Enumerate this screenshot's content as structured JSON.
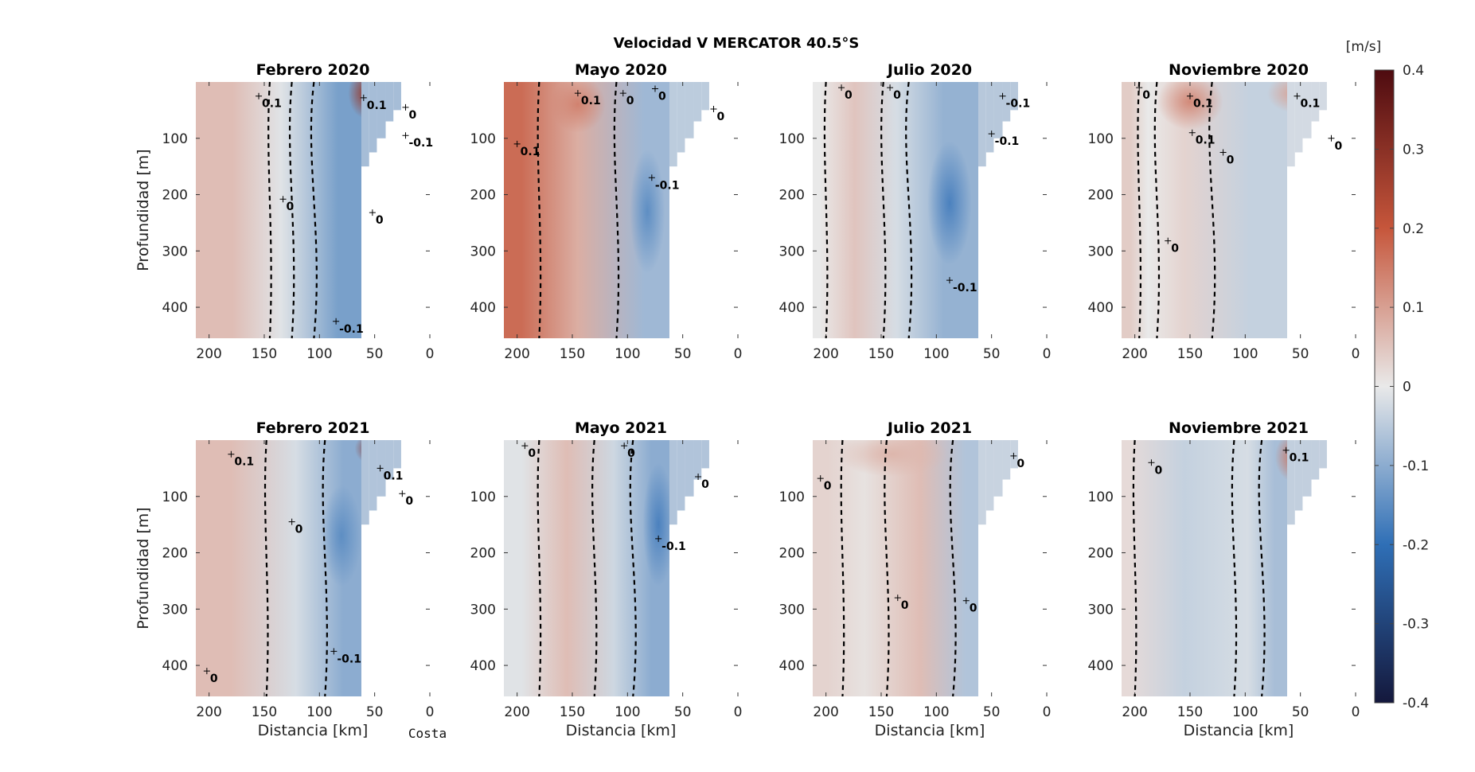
{
  "figure": {
    "suptitle": "Velocidad V MERCATOR 40.5°S",
    "colorbar": {
      "unit_label": "[m/s]",
      "range": [
        -0.4,
        0.4
      ],
      "ticks": [
        "0.4",
        "0.3",
        "0.2",
        "0.1",
        "0",
        "-0.1",
        "-0.2",
        "-0.3",
        "-0.4"
      ],
      "colormap": "blue-white-red diverging",
      "colors": {
        "neg_max": "#14183c",
        "neg_mid": "#2f6fb6",
        "zero": "#e9e9e9",
        "pos_mid": "#c6563b",
        "pos_max": "#4e0b10"
      }
    },
    "coast_label": "Costa"
  },
  "chart_data": [
    {
      "type": "heatmap",
      "title": "Febrero 2020",
      "xlabel": "",
      "ylabel": "Profundidad [m]",
      "xlim": [
        212,
        0
      ],
      "ylim": [
        455,
        0
      ],
      "xticks": [
        "200",
        "150",
        "100",
        "50",
        "0"
      ],
      "yticks": [
        "100",
        "200",
        "300",
        "400"
      ],
      "bands": [
        {
          "x": [
            212,
            145
          ],
          "v": 0.06
        },
        {
          "x": [
            145,
            125
          ],
          "v": -0.01
        },
        {
          "x": [
            125,
            105
          ],
          "v": -0.05
        },
        {
          "x": [
            105,
            62
          ],
          "v": -0.12
        }
      ],
      "blobs": [
        {
          "x": 58,
          "y": 20,
          "v": 0.28,
          "rx": 16,
          "ry": 45
        }
      ],
      "contour_labels": [
        {
          "text": "0.1",
          "x": 155,
          "y": 25
        },
        {
          "text": "0.1",
          "x": 60,
          "y": 28
        },
        {
          "text": "0",
          "x": 22,
          "y": 45
        },
        {
          "text": "-0.1",
          "x": 22,
          "y": 95
        },
        {
          "text": "0",
          "x": 133,
          "y": 208
        },
        {
          "text": "0",
          "x": 52,
          "y": 232
        },
        {
          "text": "-0.1",
          "x": 85,
          "y": 425
        }
      ]
    },
    {
      "type": "heatmap",
      "title": "Mayo 2020",
      "xlabel": "",
      "ylabel": "",
      "xlim": [
        212,
        0
      ],
      "ylim": [
        455,
        0
      ],
      "xticks": [
        "200",
        "150",
        "100",
        "50",
        "0"
      ],
      "yticks": [
        "100",
        "200",
        "300",
        "400"
      ],
      "bands": [
        {
          "x": [
            212,
            180
          ],
          "v": 0.17
        },
        {
          "x": [
            180,
            110
          ],
          "v": 0.08
        },
        {
          "x": [
            110,
            60
          ],
          "v": -0.08
        }
      ],
      "blobs": [
        {
          "x": 145,
          "y": 40,
          "v": 0.14,
          "rx": 25,
          "ry": 50
        },
        {
          "x": 82,
          "y": 230,
          "v": -0.15,
          "rx": 16,
          "ry": 110
        }
      ],
      "contour_labels": [
        {
          "text": "0.1",
          "x": 145,
          "y": 20
        },
        {
          "text": "0",
          "x": 104,
          "y": 20
        },
        {
          "text": "0",
          "x": 75,
          "y": 12
        },
        {
          "text": "0",
          "x": 22,
          "y": 48
        },
        {
          "text": "0.1",
          "x": 200,
          "y": 110
        },
        {
          "text": "-0.1",
          "x": 78,
          "y": 170
        }
      ]
    },
    {
      "type": "heatmap",
      "title": "Julio 2020",
      "xlabel": "",
      "ylabel": "",
      "xlim": [
        212,
        0
      ],
      "ylim": [
        455,
        0
      ],
      "xticks": [
        "200",
        "150",
        "100",
        "50",
        "0"
      ],
      "yticks": [
        "100",
        "200",
        "300",
        "400"
      ],
      "bands": [
        {
          "x": [
            212,
            200
          ],
          "v": 0.0
        },
        {
          "x": [
            200,
            148
          ],
          "v": 0.05
        },
        {
          "x": [
            148,
            125
          ],
          "v": -0.02
        },
        {
          "x": [
            125,
            62
          ],
          "v": -0.09
        }
      ],
      "blobs": [
        {
          "x": 88,
          "y": 215,
          "v": -0.17,
          "rx": 20,
          "ry": 110
        },
        {
          "x": 40,
          "y": 25,
          "v": -0.15,
          "rx": 15,
          "ry": 40
        }
      ],
      "contour_labels": [
        {
          "text": "0",
          "x": 186,
          "y": 10
        },
        {
          "text": "0",
          "x": 142,
          "y": 10
        },
        {
          "text": "-0.1",
          "x": 40,
          "y": 25
        },
        {
          "text": "-0.1",
          "x": 50,
          "y": 92
        },
        {
          "text": "-0.1",
          "x": 88,
          "y": 352
        }
      ]
    },
    {
      "type": "heatmap",
      "title": "Noviembre 2020",
      "xlabel": "",
      "ylabel": "",
      "xlim": [
        212,
        0
      ],
      "ylim": [
        455,
        0
      ],
      "xticks": [
        "200",
        "150",
        "100",
        "50",
        "0"
      ],
      "yticks": [
        "100",
        "200",
        "300",
        "400"
      ],
      "bands": [
        {
          "x": [
            212,
            196
          ],
          "v": 0.04
        },
        {
          "x": [
            196,
            180
          ],
          "v": 0.0
        },
        {
          "x": [
            180,
            130
          ],
          "v": 0.03
        },
        {
          "x": [
            130,
            62
          ],
          "v": -0.04
        }
      ],
      "blobs": [
        {
          "x": 150,
          "y": 35,
          "v": 0.13,
          "rx": 30,
          "ry": 50
        },
        {
          "x": 55,
          "y": 20,
          "v": 0.1,
          "rx": 25,
          "ry": 35
        }
      ],
      "contour_labels": [
        {
          "text": "0",
          "x": 196,
          "y": 10
        },
        {
          "text": "0.1",
          "x": 150,
          "y": 25
        },
        {
          "text": "0.1",
          "x": 53,
          "y": 25
        },
        {
          "text": "0.1",
          "x": 148,
          "y": 90
        },
        {
          "text": "0",
          "x": 120,
          "y": 125
        },
        {
          "text": "0",
          "x": 22,
          "y": 100
        },
        {
          "text": "0",
          "x": 170,
          "y": 282
        }
      ]
    },
    {
      "type": "heatmap",
      "title": "Febrero 2021",
      "xlabel": "Distancia [km]",
      "ylabel": "Profundidad [m]",
      "xlim": [
        212,
        0
      ],
      "ylim": [
        455,
        0
      ],
      "xticks": [
        "200",
        "150",
        "100",
        "50",
        "0"
      ],
      "yticks": [
        "100",
        "200",
        "300",
        "400"
      ],
      "bands": [
        {
          "x": [
            212,
            148
          ],
          "v": 0.06
        },
        {
          "x": [
            148,
            95
          ],
          "v": -0.02
        },
        {
          "x": [
            95,
            62
          ],
          "v": -0.1
        }
      ],
      "blobs": [
        {
          "x": 52,
          "y": 15,
          "v": 0.3,
          "rx": 16,
          "ry": 28
        },
        {
          "x": 80,
          "y": 170,
          "v": -0.15,
          "rx": 18,
          "ry": 90
        }
      ],
      "contour_labels": [
        {
          "text": "0.1",
          "x": 180,
          "y": 25
        },
        {
          "text": "0.1",
          "x": 45,
          "y": 50
        },
        {
          "text": "0",
          "x": 25,
          "y": 95
        },
        {
          "text": "0",
          "x": 125,
          "y": 145
        },
        {
          "text": "-0.1",
          "x": 87,
          "y": 375
        },
        {
          "text": "0",
          "x": 202,
          "y": 410
        }
      ]
    },
    {
      "type": "heatmap",
      "title": "Mayo 2021",
      "xlabel": "Distancia [km]",
      "ylabel": "",
      "xlim": [
        212,
        0
      ],
      "ylim": [
        455,
        0
      ],
      "xticks": [
        "200",
        "150",
        "100",
        "50",
        "0"
      ],
      "yticks": [
        "100",
        "200",
        "300",
        "400"
      ],
      "bands": [
        {
          "x": [
            212,
            180
          ],
          "v": -0.01
        },
        {
          "x": [
            180,
            130
          ],
          "v": 0.06
        },
        {
          "x": [
            130,
            95
          ],
          "v": -0.03
        },
        {
          "x": [
            95,
            62
          ],
          "v": -0.1
        }
      ],
      "blobs": [
        {
          "x": 72,
          "y": 150,
          "v": -0.17,
          "rx": 14,
          "ry": 110
        }
      ],
      "contour_labels": [
        {
          "text": "0",
          "x": 193,
          "y": 10
        },
        {
          "text": "0",
          "x": 103,
          "y": 10
        },
        {
          "text": "0",
          "x": 36,
          "y": 65
        },
        {
          "text": "-0.1",
          "x": 72,
          "y": 175
        }
      ]
    },
    {
      "type": "heatmap",
      "title": "Julio 2021",
      "xlabel": "Distancia [km]",
      "ylabel": "",
      "xlim": [
        212,
        0
      ],
      "ylim": [
        455,
        0
      ],
      "xticks": [
        "200",
        "150",
        "100",
        "50",
        "0"
      ],
      "yticks": [
        "100",
        "200",
        "300",
        "400"
      ],
      "bands": [
        {
          "x": [
            212,
            185
          ],
          "v": 0.03
        },
        {
          "x": [
            185,
            145
          ],
          "v": 0.01
        },
        {
          "x": [
            145,
            85
          ],
          "v": 0.06
        },
        {
          "x": [
            85,
            62
          ],
          "v": -0.06
        }
      ],
      "blobs": [
        {
          "x": 140,
          "y": 25,
          "v": 0.07,
          "rx": 50,
          "ry": 40
        }
      ],
      "contour_labels": [
        {
          "text": "0",
          "x": 205,
          "y": 68
        },
        {
          "text": "0",
          "x": 30,
          "y": 28
        },
        {
          "text": "0",
          "x": 135,
          "y": 280
        },
        {
          "text": "0",
          "x": 73,
          "y": 285
        }
      ]
    },
    {
      "type": "heatmap",
      "title": "Noviembre 2021",
      "xlabel": "Distancia [km]",
      "ylabel": "",
      "xlim": [
        212,
        0
      ],
      "ylim": [
        455,
        0
      ],
      "xticks": [
        "200",
        "150",
        "100",
        "50",
        "0"
      ],
      "yticks": [
        "100",
        "200",
        "300",
        "400"
      ],
      "bands": [
        {
          "x": [
            212,
            200
          ],
          "v": 0.02
        },
        {
          "x": [
            200,
            110
          ],
          "v": -0.04
        },
        {
          "x": [
            110,
            85
          ],
          "v": -0.02
        },
        {
          "x": [
            85,
            62
          ],
          "v": -0.07
        }
      ],
      "blobs": [
        {
          "x": 55,
          "y": 30,
          "v": 0.17,
          "rx": 18,
          "ry": 45
        }
      ],
      "contour_labels": [
        {
          "text": "0.1",
          "x": 63,
          "y": 18
        },
        {
          "text": "0",
          "x": 185,
          "y": 40
        }
      ]
    }
  ]
}
